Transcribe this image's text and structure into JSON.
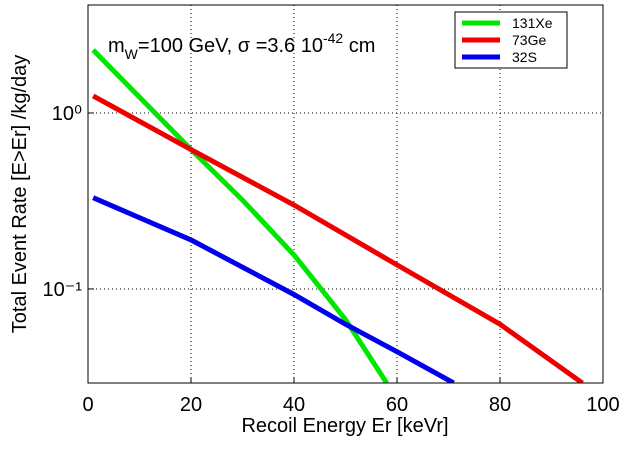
{
  "chart_data": {
    "type": "line",
    "xlabel": "Recoil Energy Er [keVr]",
    "ylabel": "Total Event Rate [E>Er] /kg/day",
    "annotation": {
      "m": "m",
      "sub": "W",
      "mid": "=100 GeV, σ =3.6 10",
      "sup": "-42",
      "end": " cm"
    },
    "xlim": [
      0,
      100
    ],
    "xticks": [
      0,
      20,
      40,
      60,
      80,
      100
    ],
    "ylim": [
      0.0292,
      4.11
    ],
    "log_y": true,
    "yticks": [
      {
        "value": 0.1,
        "label": "10⁻¹"
      },
      {
        "value": 1,
        "label": "10⁰"
      }
    ],
    "grid": true,
    "legend": "upper right",
    "series": [
      {
        "name": "131Xe",
        "color": "#00e600",
        "x": [
          1,
          10,
          20,
          30,
          40,
          50,
          58
        ],
        "values": [
          2.28,
          1.23,
          0.62,
          0.32,
          0.156,
          0.067,
          0.0292
        ]
      },
      {
        "name": "73Ge",
        "color": "#ee0000",
        "x": [
          1,
          20,
          40,
          60,
          80,
          96
        ],
        "values": [
          1.25,
          0.62,
          0.3,
          0.137,
          0.063,
          0.0292
        ]
      },
      {
        "name": "32S",
        "color": "#0000ee",
        "x": [
          1,
          20,
          40,
          50,
          60,
          71
        ],
        "values": [
          0.33,
          0.19,
          0.093,
          0.063,
          0.044,
          0.0292
        ]
      }
    ]
  }
}
